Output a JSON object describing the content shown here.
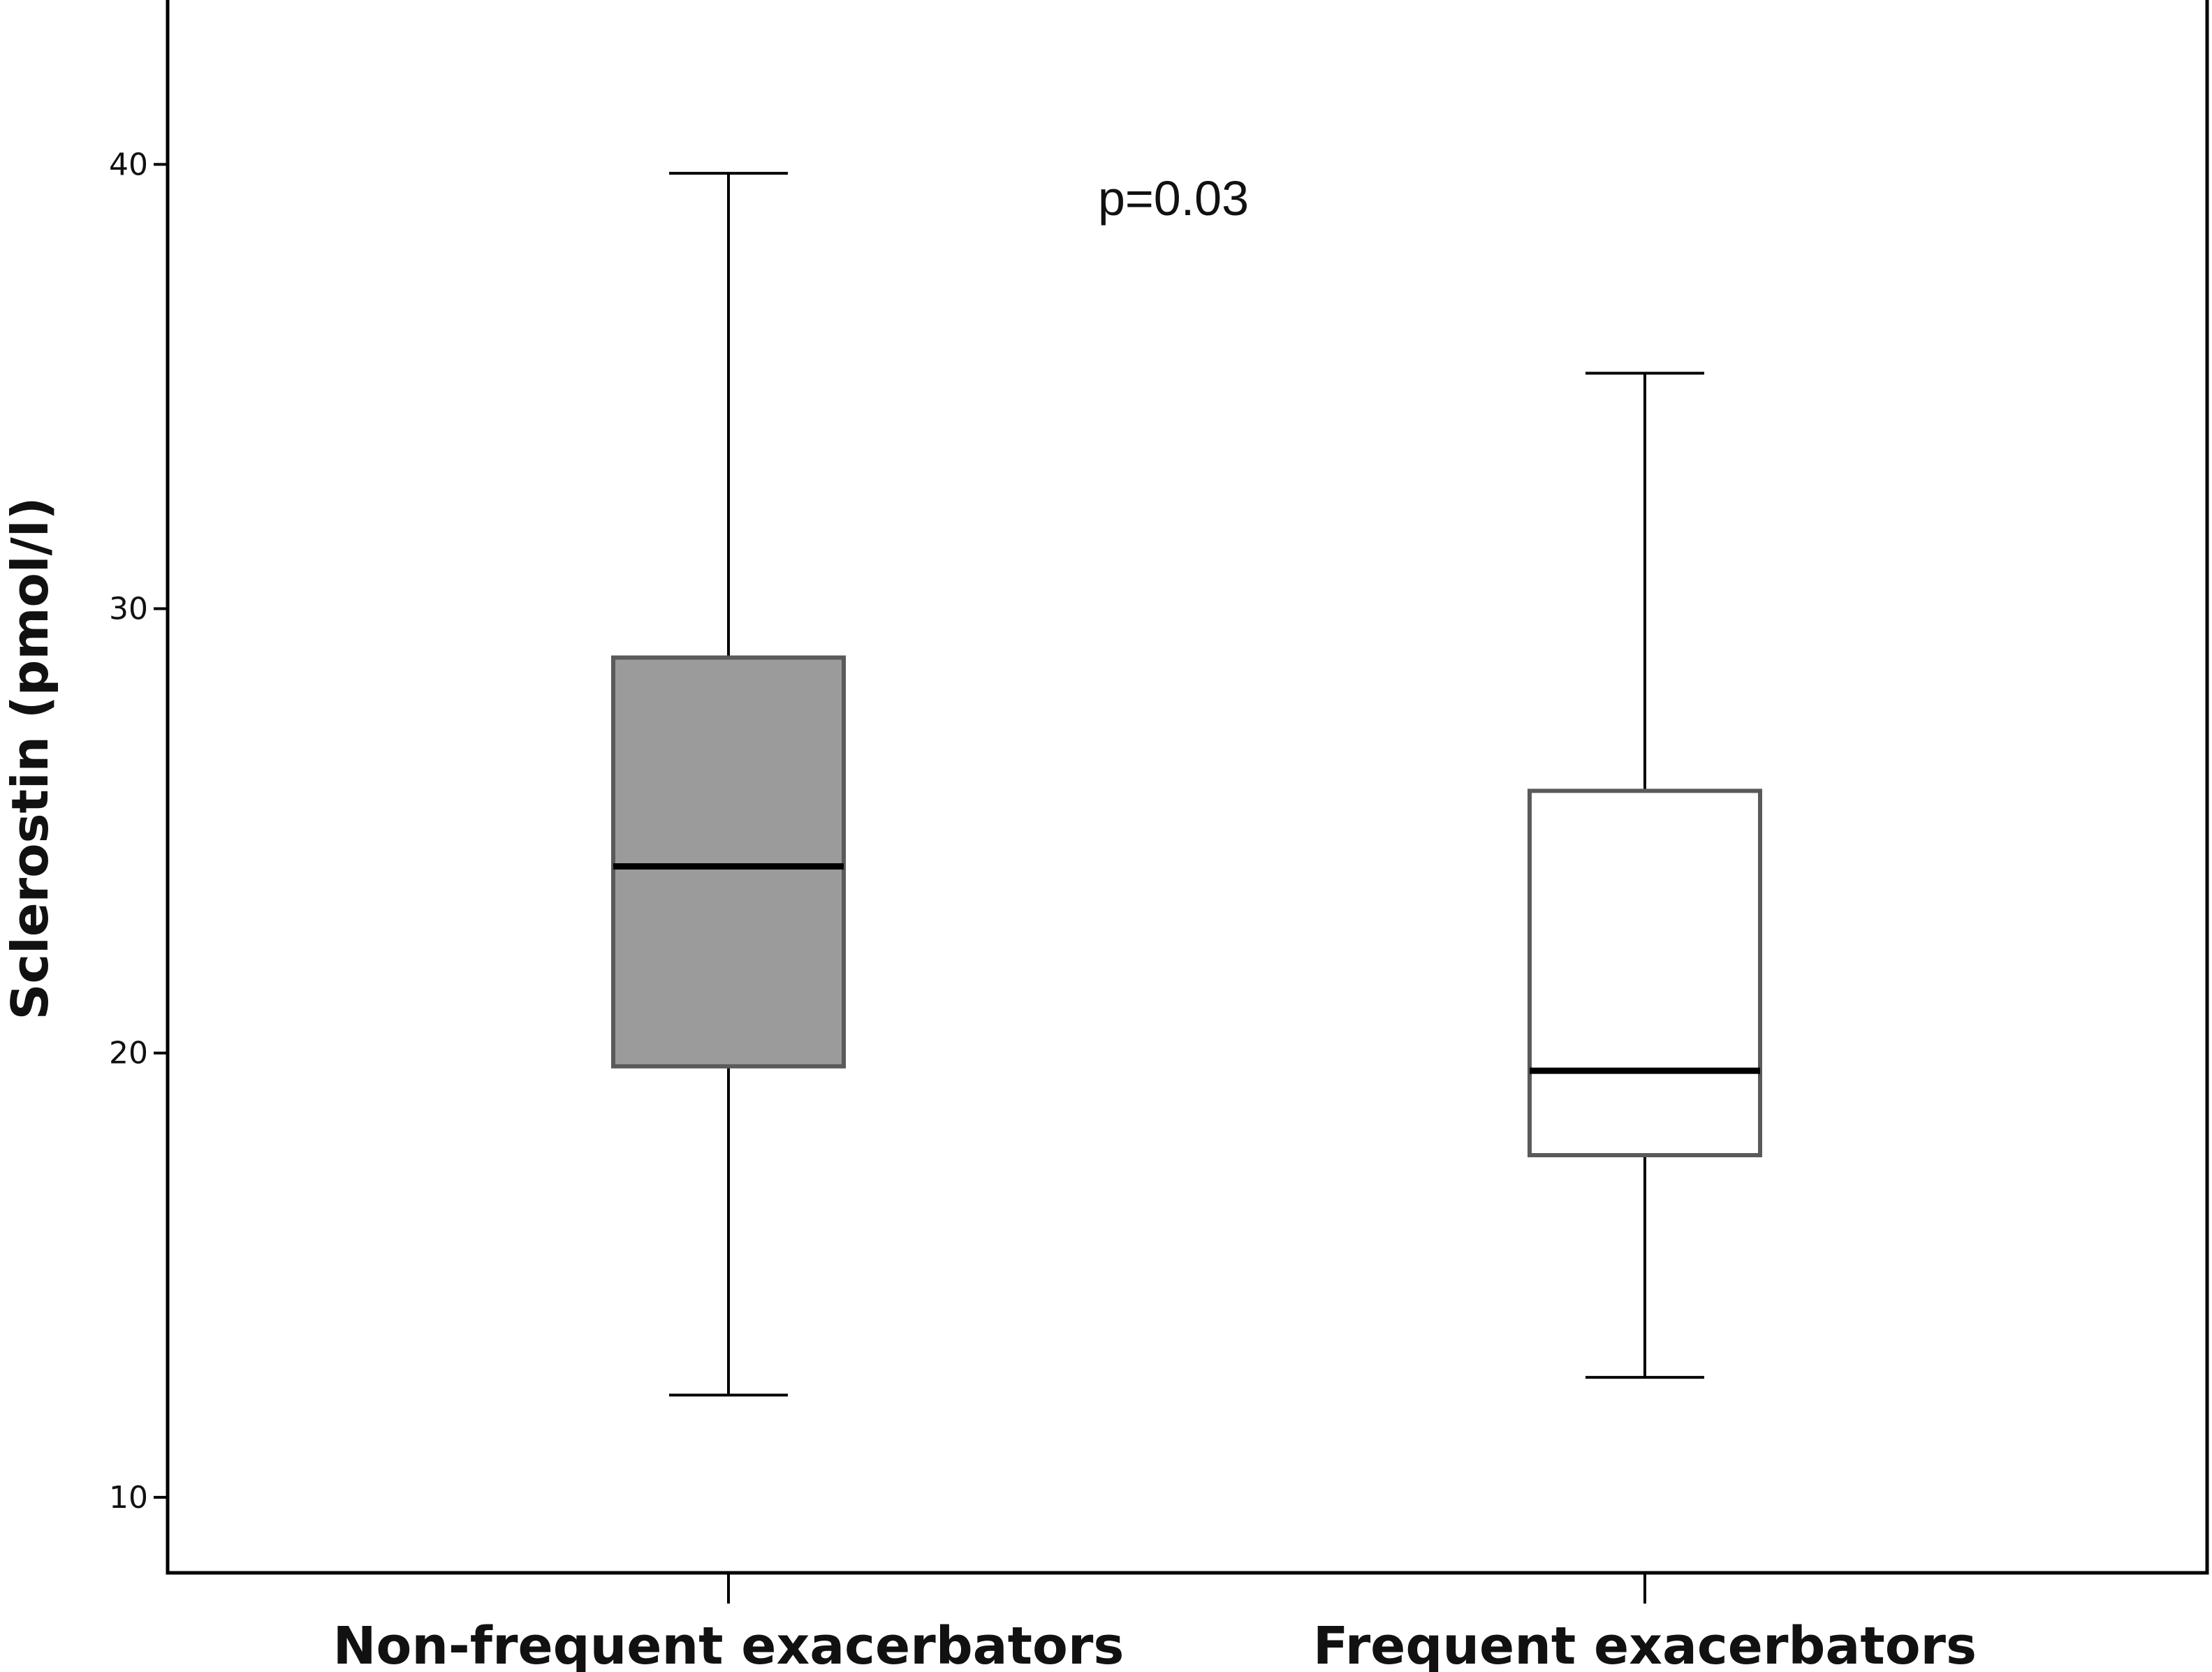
{
  "chart_data": {
    "type": "box",
    "ylabel": "Sclerostin (pmol/l)",
    "xlabel": "",
    "ylim": [
      8.3,
      43.7
    ],
    "yticks": [
      10,
      20,
      30,
      40
    ],
    "categories": [
      "Non-frequent exacerbators",
      "Frequent exacerbators"
    ],
    "boxes": [
      {
        "category": "Non-frequent exacerbators",
        "whisker_low": 12.3,
        "q1": 19.7,
        "median": 24.2,
        "q3": 28.9,
        "whisker_high": 39.8,
        "fill": "#9b9b9b"
      },
      {
        "category": "Frequent exacerbators",
        "whisker_low": 12.7,
        "q1": 17.7,
        "median": 19.6,
        "q3": 25.9,
        "whisker_high": 35.3,
        "fill": "#ffffff"
      }
    ],
    "annotations": [
      {
        "text": "p=0.03"
      }
    ],
    "grid": false,
    "legend": "none"
  }
}
